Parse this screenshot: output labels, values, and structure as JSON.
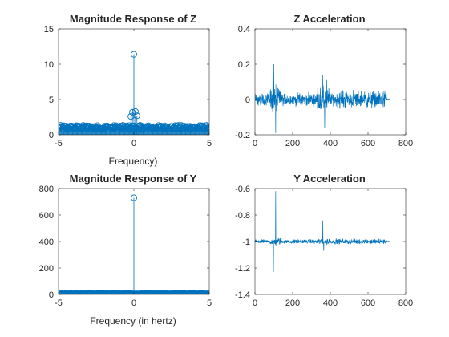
{
  "figure": {
    "background": "#ffffff",
    "line_color": "#0072BD",
    "axis_color": "#262626"
  },
  "chart_data": [
    {
      "type": "stem",
      "title": "Magnitude Response of Z",
      "xlabel": "Frequency)",
      "ylabel": "",
      "xlim": [
        -5,
        5
      ],
      "ylim": [
        0,
        15
      ],
      "xticks": [
        -5,
        0,
        5
      ],
      "yticks": [
        0,
        5,
        10,
        15
      ],
      "grid": false,
      "series": [
        {
          "description_values": "stem magnitudes: dense noise floor about 0.3-1.5, peak near 0 Hz",
          "peak": {
            "x": 0,
            "y": 11.4
          },
          "side_peaks": [
            {
              "x": -0.1,
              "y": 3.2
            },
            {
              "x": 0.1,
              "y": 3.3
            },
            {
              "x": -0.2,
              "y": 2.6
            },
            {
              "x": 0.2,
              "y": 2.7
            }
          ],
          "floor_range": [
            0.3,
            1.6
          ]
        }
      ]
    },
    {
      "type": "line",
      "title": "Z Acceleration",
      "xlabel": "",
      "ylabel": "",
      "xlim": [
        0,
        800
      ],
      "ylim": [
        -0.2,
        0.4
      ],
      "xticks": [
        0,
        200,
        400,
        600,
        800
      ],
      "yticks": [
        -0.2,
        0,
        0.2,
        0.4
      ],
      "grid": false,
      "series": [
        {
          "n_samples": 720,
          "baseline": 0,
          "spikes": [
            {
              "x": 100,
              "y": 0.2
            },
            {
              "x": 110,
              "y": -0.19
            },
            {
              "x": 95,
              "y": 0.13
            },
            {
              "x": 360,
              "y": 0.14
            },
            {
              "x": 370,
              "y": -0.16
            },
            {
              "x": 380,
              "y": 0.11
            }
          ],
          "noise_amplitude": 0.05
        }
      ]
    },
    {
      "type": "stem",
      "title": "Magnitude Response of Y",
      "xlabel": "Frequency (in hertz)",
      "ylabel": "",
      "xlim": [
        -5,
        5
      ],
      "ylim": [
        0,
        800
      ],
      "xticks": [
        -5,
        0,
        5
      ],
      "yticks": [
        0,
        200,
        400,
        600,
        800
      ],
      "grid": false,
      "series": [
        {
          "peak": {
            "x": 0,
            "y": 730
          },
          "floor_range": [
            0,
            8
          ]
        }
      ]
    },
    {
      "type": "line",
      "title": "Y Acceleration",
      "xlabel": "",
      "ylabel": "",
      "xlim": [
        0,
        800
      ],
      "ylim": [
        -1.4,
        -0.6
      ],
      "xticks": [
        0,
        200,
        400,
        600,
        800
      ],
      "yticks": [
        -1.4,
        -1.2,
        -1,
        -0.8,
        -0.6
      ],
      "grid": false,
      "series": [
        {
          "n_samples": 720,
          "baseline": -1,
          "spikes": [
            {
              "x": 98,
              "y": -1.23
            },
            {
              "x": 110,
              "y": -0.62
            },
            {
              "x": 360,
              "y": -0.84
            },
            {
              "x": 365,
              "y": -1.07
            }
          ],
          "noise_amplitude": 0.02
        }
      ]
    }
  ]
}
